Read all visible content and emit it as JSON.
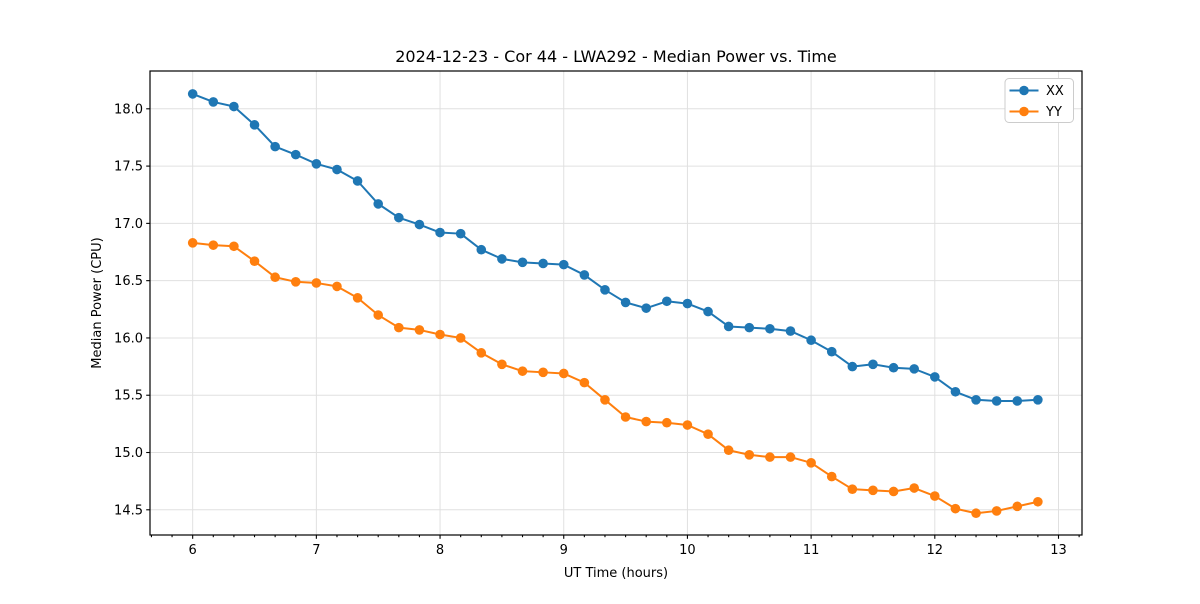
{
  "chart_data": {
    "type": "line",
    "title": "2024-12-23 - Cor 44 - LWA292 - Median Power vs. Time",
    "xlabel": "UT Time (hours)",
    "ylabel": "Median Power (CPU)",
    "x": [
      6.0,
      6.1667,
      6.3333,
      6.5,
      6.6667,
      6.8333,
      7.0,
      7.1667,
      7.3333,
      7.5,
      7.6667,
      7.8333,
      8.0,
      8.1667,
      8.3333,
      8.5,
      8.6667,
      8.8333,
      9.0,
      9.1667,
      9.3333,
      9.5,
      9.6667,
      9.8333,
      10.0,
      10.1667,
      10.3333,
      10.5,
      10.6667,
      10.8333,
      11.0,
      11.1667,
      11.3333,
      11.5,
      11.6667,
      11.8333,
      12.0,
      12.1667,
      12.3333,
      12.5,
      12.6667,
      12.8333
    ],
    "series": [
      {
        "name": "XX",
        "color": "#1f77b4",
        "values": [
          18.13,
          18.06,
          18.02,
          17.86,
          17.67,
          17.6,
          17.52,
          17.47,
          17.37,
          17.17,
          17.05,
          16.99,
          16.92,
          16.91,
          16.77,
          16.69,
          16.66,
          16.65,
          16.64,
          16.55,
          16.42,
          16.31,
          16.26,
          16.32,
          16.3,
          16.23,
          16.1,
          16.09,
          16.08,
          16.06,
          15.98,
          15.88,
          15.75,
          15.77,
          15.74,
          15.73,
          15.66,
          15.53,
          15.46,
          15.45,
          15.45,
          15.46
        ]
      },
      {
        "name": "YY",
        "color": "#ff7f0e",
        "values": [
          16.83,
          16.81,
          16.8,
          16.67,
          16.53,
          16.49,
          16.48,
          16.45,
          16.35,
          16.2,
          16.09,
          16.07,
          16.03,
          16.0,
          15.87,
          15.77,
          15.71,
          15.7,
          15.69,
          15.61,
          15.46,
          15.31,
          15.27,
          15.26,
          15.24,
          15.16,
          15.02,
          14.98,
          14.96,
          14.96,
          14.91,
          14.79,
          14.68,
          14.67,
          14.66,
          14.69,
          14.62,
          14.51,
          14.47,
          14.49,
          14.53,
          14.57
        ]
      }
    ],
    "xlim": [
      5.655,
      13.19
    ],
    "ylim": [
      14.28,
      18.33
    ],
    "xticks": [
      6,
      7,
      8,
      9,
      10,
      11,
      12,
      13
    ],
    "yticks": [
      14.5,
      15.0,
      15.5,
      16.0,
      16.5,
      17.0,
      17.5,
      18.0
    ],
    "x_minor_tick_step": 0.16667,
    "grid": true,
    "marker": "circle",
    "legend_position": "upper right"
  }
}
